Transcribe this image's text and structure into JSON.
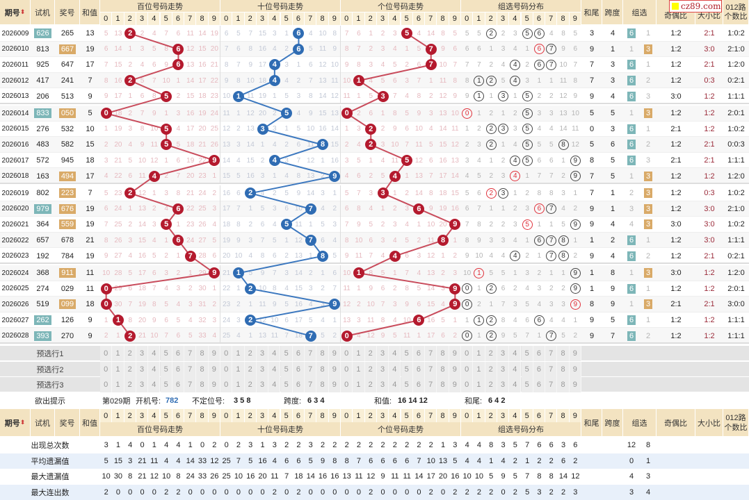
{
  "watermark": "cz89.com",
  "header": {
    "issue": "期号",
    "sort_icon": "sort-updown-icon",
    "trial": "试机",
    "draw": "奖号",
    "sum": "和值",
    "sections": [
      "百位号码走势",
      "十位号码走势",
      "个位号码走势",
      "组选号码分布"
    ],
    "digits": [
      "0",
      "1",
      "2",
      "3",
      "4",
      "5",
      "6",
      "7",
      "8",
      "9"
    ],
    "tail": "和尾",
    "span": "跨度",
    "group": "组选",
    "odd_even": "奇偶比",
    "big_small": "大小比",
    "route012": "012路个数比",
    "route012_l1": "012路",
    "route012_l2": "个数比"
  },
  "rows": [
    {
      "issue": "2026009",
      "trial": "626",
      "draw": "265",
      "sum": "13",
      "trial_hl": true,
      "draw_hl": false
    },
    {
      "issue": "2026010",
      "trial": "813",
      "draw": "667",
      "sum": "19",
      "trial_hl": false,
      "draw_hl": true
    },
    {
      "issue": "2026011",
      "trial": "925",
      "draw": "647",
      "sum": "17",
      "trial_hl": false,
      "draw_hl": false
    },
    {
      "issue": "2026012",
      "trial": "417",
      "draw": "241",
      "sum": "7",
      "trial_hl": false,
      "draw_hl": false
    },
    {
      "issue": "2026013",
      "trial": "206",
      "draw": "513",
      "sum": "9",
      "trial_hl": false,
      "draw_hl": false
    },
    {
      "issue": "2026014",
      "trial": "833",
      "draw": "050",
      "sum": "5",
      "trial_hl": true,
      "draw_hl": true
    },
    {
      "issue": "2026015",
      "trial": "276",
      "draw": "532",
      "sum": "10",
      "trial_hl": false,
      "draw_hl": false
    },
    {
      "issue": "2026016",
      "trial": "483",
      "draw": "582",
      "sum": "15",
      "trial_hl": false,
      "draw_hl": false
    },
    {
      "issue": "2026017",
      "trial": "572",
      "draw": "945",
      "sum": "18",
      "trial_hl": false,
      "draw_hl": false
    },
    {
      "issue": "2026018",
      "trial": "163",
      "draw": "494",
      "sum": "17",
      "trial_hl": false,
      "draw_hl": true
    },
    {
      "issue": "2026019",
      "trial": "802",
      "draw": "223",
      "sum": "7",
      "trial_hl": false,
      "draw_hl": true
    },
    {
      "issue": "2026020",
      "trial": "979",
      "draw": "676",
      "sum": "19",
      "trial_hl": true,
      "draw_hl": true
    },
    {
      "issue": "2026021",
      "trial": "364",
      "draw": "559",
      "sum": "19",
      "trial_hl": false,
      "draw_hl": true
    },
    {
      "issue": "2026022",
      "trial": "657",
      "draw": "678",
      "sum": "21",
      "trial_hl": false,
      "draw_hl": false
    },
    {
      "issue": "2026023",
      "trial": "192",
      "draw": "784",
      "sum": "19",
      "trial_hl": false,
      "draw_hl": false
    },
    {
      "issue": "2026024",
      "trial": "368",
      "draw": "911",
      "sum": "11",
      "trial_hl": false,
      "draw_hl": true
    },
    {
      "issue": "2026025",
      "trial": "274",
      "draw": "029",
      "sum": "11",
      "trial_hl": false,
      "draw_hl": false
    },
    {
      "issue": "2026026",
      "trial": "519",
      "draw": "099",
      "sum": "18",
      "trial_hl": false,
      "draw_hl": true
    },
    {
      "issue": "2026027",
      "trial": "262",
      "draw": "126",
      "sum": "9",
      "trial_hl": true,
      "draw_hl": false
    },
    {
      "issue": "2026028",
      "trial": "393",
      "draw": "270",
      "sum": "9",
      "trial_hl": true,
      "draw_hl": false
    }
  ],
  "initial_miss": {
    "hundreds": [
      5,
      13,
      0,
      2,
      4,
      7,
      6,
      11,
      14,
      19
    ],
    "tens": [
      6,
      5,
      7,
      15,
      3,
      1,
      0,
      4,
      10,
      8
    ],
    "units": [
      7,
      6,
      1,
      2,
      3,
      0,
      4,
      14,
      8,
      5
    ],
    "group": [
      5,
      5,
      0,
      2,
      3,
      0,
      0,
      4,
      8,
      5
    ],
    "group_type": [
      0,
      1
    ]
  },
  "colors": {
    "ball_red": "#b41a2e",
    "ball_blue": "#2f6cb3",
    "line_red": "#c94c5c",
    "line_blue": "#3c78bf",
    "trial_hl": "#7db6b8",
    "draw_hl": "#d9aa68",
    "header": "#f3e3c1"
  },
  "preselect": [
    "预选行1",
    "预选行2",
    "预选行3"
  ],
  "hint": {
    "label": "欲出提示",
    "issue": "第029期",
    "trial_label": "开机号:",
    "trial": "782",
    "nonpos_label": "不定位号:",
    "nonpos": "3 5 8",
    "span_label": "跨度:",
    "span": "6 3 4",
    "sum_label": "和值:",
    "sum": "16 14 12",
    "tail_label": "和尾:",
    "tail": "6 4 2"
  },
  "stats": [
    {
      "label": "出现总次数",
      "hundreds": [
        3,
        1,
        4,
        0,
        1,
        4,
        4,
        1,
        0,
        2
      ],
      "tens": [
        0,
        2,
        3,
        1,
        3,
        2,
        2,
        3,
        2,
        2
      ],
      "units": [
        2,
        2,
        2,
        2,
        2,
        2,
        2,
        2,
        1,
        3
      ],
      "group": [
        4,
        4,
        8,
        3,
        5,
        7,
        6,
        6,
        3,
        6
      ],
      "group_type": [
        12,
        8
      ]
    },
    {
      "label": "平均遗漏值",
      "hundreds": [
        5,
        15,
        3,
        21,
        11,
        4,
        4,
        14,
        33,
        12
      ],
      "tens": [
        25,
        7,
        5,
        16,
        4,
        6,
        6,
        5,
        9,
        8
      ],
      "units": [
        8,
        7,
        6,
        6,
        6,
        6,
        7,
        10,
        13,
        5
      ],
      "group": [
        4,
        4,
        1,
        4,
        2,
        1,
        2,
        2,
        6,
        2
      ],
      "group_type": [
        0,
        1
      ]
    },
    {
      "label": "最大遗漏值",
      "hundreds": [
        10,
        30,
        8,
        21,
        12,
        10,
        8,
        24,
        33,
        26
      ],
      "tens": [
        25,
        10,
        16,
        20,
        11,
        7,
        18,
        14,
        16,
        16
      ],
      "units": [
        13,
        11,
        12,
        9,
        11,
        11,
        14,
        17,
        20,
        16
      ],
      "group": [
        10,
        10,
        5,
        9,
        5,
        7,
        8,
        8,
        14,
        12
      ],
      "group_type": [
        4,
        3
      ]
    },
    {
      "label": "最大连出数",
      "hundreds": [
        2,
        0,
        0,
        0,
        0,
        2,
        2,
        0,
        0,
        0
      ],
      "tens": [
        0,
        0,
        0,
        0,
        2,
        0,
        2,
        0,
        0,
        0
      ],
      "units": [
        0,
        0,
        2,
        0,
        0,
        0,
        0,
        2,
        0,
        2
      ],
      "group": [
        2,
        2,
        2,
        0,
        2,
        5,
        3,
        2,
        2,
        3
      ],
      "group_type": [
        3,
        4
      ]
    }
  ]
}
